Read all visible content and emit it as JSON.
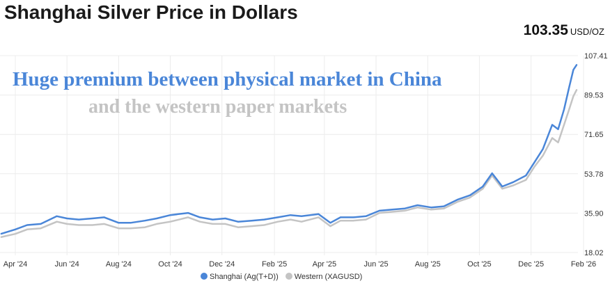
{
  "header": {
    "title": "Shanghai Silver Price in Dollars",
    "price": "103.35",
    "unit": "USD/OZ"
  },
  "annotations": [
    "Huge premium between physical market in China",
    "and the western paper markets"
  ],
  "chart_data": {
    "type": "line",
    "title": "Shanghai Silver Price in Dollars",
    "xlabel": "",
    "ylabel": "",
    "y_ticks": [
      "18.02",
      "35.90",
      "53.78",
      "71.65",
      "89.53",
      "107.41"
    ],
    "ylim": [
      18.02,
      107.41
    ],
    "x_ticks": [
      {
        "label": "Apr '24",
        "date": "2024-04-01"
      },
      {
        "label": "Jun '24",
        "date": "2024-06-01"
      },
      {
        "label": "Aug '24",
        "date": "2024-08-01"
      },
      {
        "label": "Oct '24",
        "date": "2024-10-01"
      },
      {
        "label": "Dec '24",
        "date": "2024-12-01"
      },
      {
        "label": "Feb '25",
        "date": "2025-02-01"
      },
      {
        "label": "Apr '25",
        "date": "2025-04-01"
      },
      {
        "label": "Jun '25",
        "date": "2025-06-01"
      },
      {
        "label": "Aug '25",
        "date": "2025-08-01"
      },
      {
        "label": "Oct '25",
        "date": "2025-10-01"
      },
      {
        "label": "Dec '25",
        "date": "2025-12-01"
      },
      {
        "label": "Feb '26",
        "date": "2026-02-01"
      }
    ],
    "grid": true,
    "legend_position": "bottom",
    "x": [
      "2024-03-15",
      "2024-04-01",
      "2024-04-15",
      "2024-05-01",
      "2024-05-20",
      "2024-06-01",
      "2024-06-15",
      "2024-07-01",
      "2024-07-15",
      "2024-08-01",
      "2024-08-15",
      "2024-09-01",
      "2024-09-15",
      "2024-10-01",
      "2024-10-22",
      "2024-11-05",
      "2024-11-20",
      "2024-12-05",
      "2024-12-20",
      "2025-01-05",
      "2025-01-20",
      "2025-02-05",
      "2025-02-20",
      "2025-03-05",
      "2025-03-25",
      "2025-04-08",
      "2025-04-20",
      "2025-05-05",
      "2025-05-20",
      "2025-06-05",
      "2025-06-20",
      "2025-07-05",
      "2025-07-20",
      "2025-08-05",
      "2025-08-20",
      "2025-09-05",
      "2025-09-20",
      "2025-10-05",
      "2025-10-16",
      "2025-10-28",
      "2025-11-10",
      "2025-11-25",
      "2025-12-05",
      "2025-12-15",
      "2025-12-26",
      "2026-01-02",
      "2026-01-09",
      "2026-01-15",
      "2026-01-20",
      "2026-01-24"
    ],
    "series": [
      {
        "name": "Shanghai (Ag(T+D))",
        "color": "#4a86d8",
        "values": [
          26.5,
          28.5,
          30.5,
          31,
          34.5,
          33.5,
          33,
          33.5,
          34,
          31.5,
          31.5,
          32.5,
          33.5,
          35,
          36,
          34,
          33,
          33.5,
          32,
          32.5,
          33,
          34,
          35,
          34.5,
          35.5,
          31.5,
          34,
          34,
          34.5,
          37,
          37.5,
          38,
          39.5,
          38.5,
          39,
          42,
          44,
          48,
          54,
          48,
          50,
          53,
          59,
          65,
          76,
          74,
          83,
          93,
          101,
          103.35
        ]
      },
      {
        "name": "Western (XAGUSD)",
        "color": "#c4c4c4",
        "values": [
          25,
          26.5,
          28.5,
          29,
          32,
          31,
          30.5,
          30.5,
          31,
          29,
          29,
          29.5,
          31,
          32,
          34,
          32,
          31,
          31,
          29.5,
          30,
          30.5,
          32,
          33,
          32,
          34,
          30,
          32.5,
          32.5,
          33,
          36,
          36.5,
          37,
          38.5,
          37.5,
          38,
          41,
          43,
          47,
          53,
          47,
          48.5,
          51,
          57,
          62,
          70,
          68,
          76,
          83,
          89,
          92
        ]
      }
    ]
  }
}
